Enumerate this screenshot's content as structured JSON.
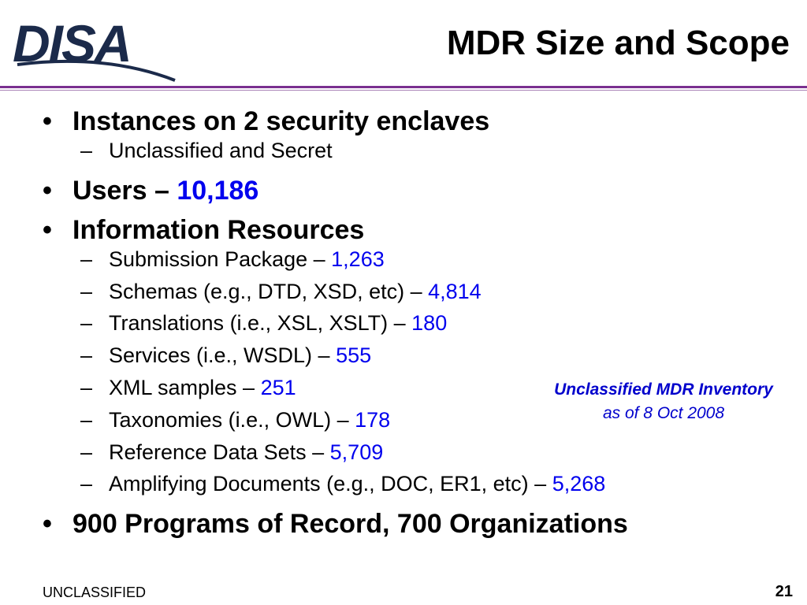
{
  "logo": {
    "text": "DISA"
  },
  "title": "MDR Size and Scope",
  "bullets": [
    {
      "text": "Instances on 2 security enclaves",
      "value": "",
      "sub": [
        {
          "text": "Unclassified and Secret",
          "value": ""
        }
      ]
    },
    {
      "text": "Users – ",
      "value": "10,186",
      "sub": []
    },
    {
      "text": "Information Resources",
      "value": "",
      "sub": [
        {
          "text": "Submission Package – ",
          "value": "1,263"
        },
        {
          "text": "Schemas (e.g., DTD, XSD, etc) – ",
          "value": "4,814"
        },
        {
          "text": "Translations (i.e., XSL, XSLT) – ",
          "value": "180"
        },
        {
          "text": "Services (i.e., WSDL) – ",
          "value": "555"
        },
        {
          "text": "XML samples – ",
          "value": "251"
        },
        {
          "text": "Taxonomies (i.e., OWL) – ",
          "value": "178"
        },
        {
          "text": "Reference Data Sets – ",
          "value": "5,709"
        },
        {
          "text": "Amplifying Documents (e.g., DOC, ER1, etc) – ",
          "value": "5,268"
        }
      ]
    },
    {
      "text": "900 Programs of Record, 700 Organizations",
      "value": "",
      "sub": []
    }
  ],
  "note": {
    "line1": "Unclassified MDR Inventory",
    "line2": "as of 8 Oct 2008"
  },
  "footer": {
    "classification": "UNCLASSIFIED",
    "page_number": "21"
  },
  "colors": {
    "value_blue": "#0000ee",
    "note_blue": "#0000cc",
    "rule_purple": "#7a2f8f",
    "logo_navy": "#1b2a4a"
  }
}
